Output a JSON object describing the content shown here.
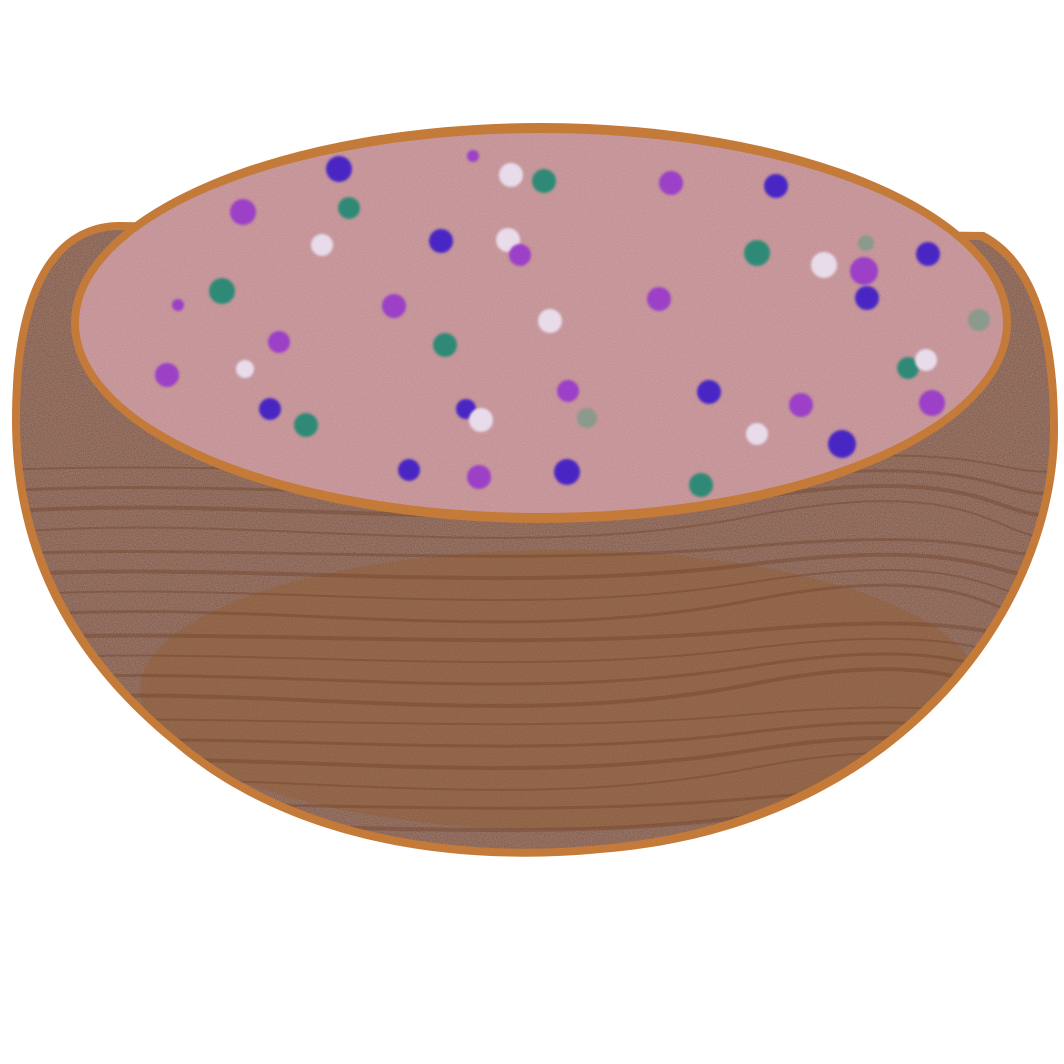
{
  "scene": {
    "background_color": "#ffffff",
    "subject": "bowl-icon"
  },
  "bowl": {
    "rim_color": "#c47a38",
    "body_color": "#7e4a2a",
    "body_highlight_color": "#94603a",
    "grain_color": "#6a3c22",
    "fill_color": "#c0868b",
    "fill_shadow_color": "#b57a80"
  },
  "sprinkle_palette": {
    "purple": "#9b3fc7",
    "indigo": "#4a28c4",
    "teal": "#2f8a76",
    "white": "#e8dceb",
    "grey": "#8a9a8c"
  }
}
